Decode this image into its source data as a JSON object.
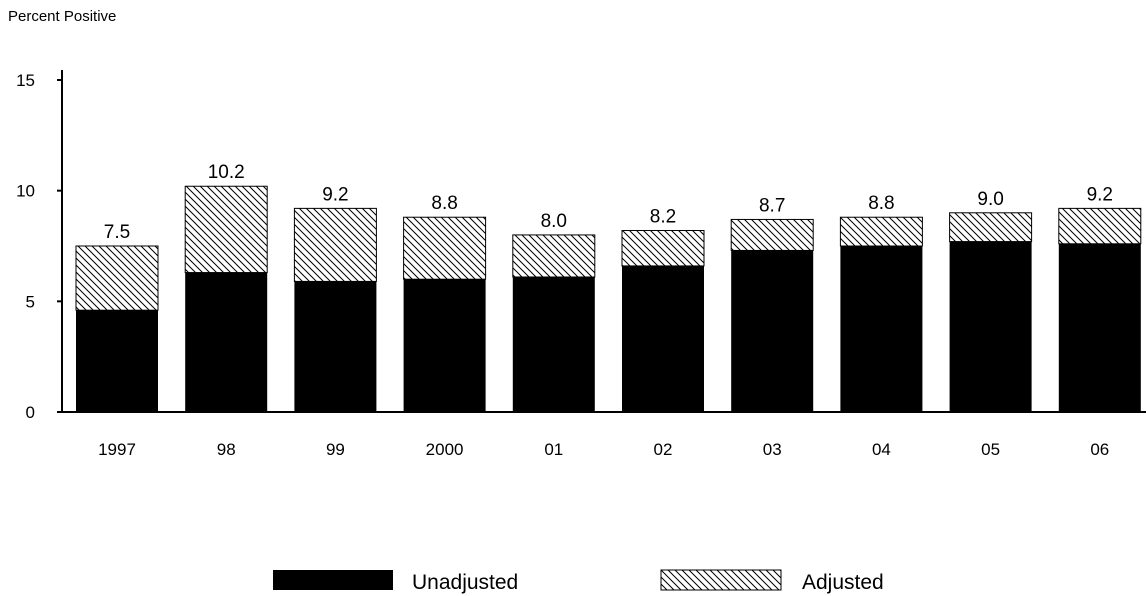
{
  "chart_data": {
    "type": "bar",
    "stacked": true,
    "ylabel": "Percent Positive",
    "xlabel": "",
    "title": "",
    "ylim": [
      0,
      15
    ],
    "yticks": [
      0,
      5,
      10,
      15
    ],
    "categories": [
      "1997",
      "98",
      "99",
      "2000",
      "01",
      "02",
      "03",
      "04",
      "05",
      "06"
    ],
    "series": [
      {
        "name": "Unadjusted",
        "values": [
          4.6,
          6.3,
          5.9,
          6.0,
          6.1,
          6.6,
          7.3,
          7.5,
          7.7,
          7.6
        ]
      },
      {
        "name": "Adjusted",
        "values": [
          2.9,
          3.9,
          3.3,
          2.8,
          1.9,
          1.6,
          1.4,
          1.3,
          1.3,
          1.6
        ]
      }
    ],
    "totals": [
      "7.5",
      "10.2",
      "9.2",
      "8.8",
      "8.0",
      "8.2",
      "8.7",
      "8.8",
      "9.0",
      "9.2"
    ],
    "grid": false,
    "legend_position": "bottom-center",
    "colors": {
      "unadjusted": "#000000",
      "adjusted_pattern": "diagonal-hatch"
    }
  }
}
